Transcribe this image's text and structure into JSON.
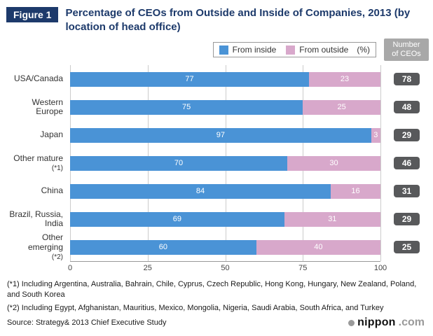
{
  "figure_label": "Figure 1",
  "title": "Percentage of CEOs from Outside and Inside of Companies, 2013 (by location of head office)",
  "legend": {
    "inside_label": "From inside",
    "outside_label": "From outside",
    "unit": "(%)"
  },
  "ceo_header": "Number\nof CEOs",
  "colors": {
    "navy": "#1d3a6b",
    "inside_blue": "#4a93d6",
    "outside_pink": "#d8a8cb",
    "ceo_badge_gray": "#58595b",
    "ceo_header_gray": "#a8a8a8"
  },
  "chart_data": {
    "type": "bar",
    "orientation": "horizontal",
    "stacked": true,
    "title": "Percentage of CEOs from Outside and Inside of Companies, 2013 (by location of head office)",
    "categories": [
      "USA/Canada",
      "Western Europe",
      "Japan",
      "Other mature",
      "China",
      "Brazil, Russia, India",
      "Other emerging"
    ],
    "category_notes": [
      "",
      "",
      "",
      "(*1)",
      "",
      "",
      "(*2)"
    ],
    "series": [
      {
        "name": "From inside",
        "color": "#4a93d6",
        "values": [
          77,
          75,
          97,
          70,
          84,
          69,
          60
        ]
      },
      {
        "name": "From outside",
        "color": "#d8a8cb",
        "values": [
          23,
          25,
          3,
          30,
          16,
          31,
          40
        ]
      }
    ],
    "ceo_counts": [
      78,
      48,
      29,
      46,
      31,
      29,
      25
    ],
    "x_ticks": [
      0,
      25,
      50,
      75,
      100
    ],
    "xlim": [
      0,
      100
    ],
    "unit": "%",
    "grid": true,
    "legend_position": "top-right"
  },
  "footnotes": {
    "note1": "(*1) Including Argentina, Australia, Bahrain, Chile, Cyprus, Czech Republic, Hong Kong, Hungary, New Zealand, Poland, and South Korea",
    "note2": "(*2) Including Egypt, Afghanistan, Mauritius, Mexico, Mongolia, Nigeria, Saudi Arabia, South Africa, and Turkey",
    "source": "Source: Strategy& 2013 Chief Executive Study"
  },
  "logo": {
    "name": "nippon",
    "tld": ".com"
  }
}
